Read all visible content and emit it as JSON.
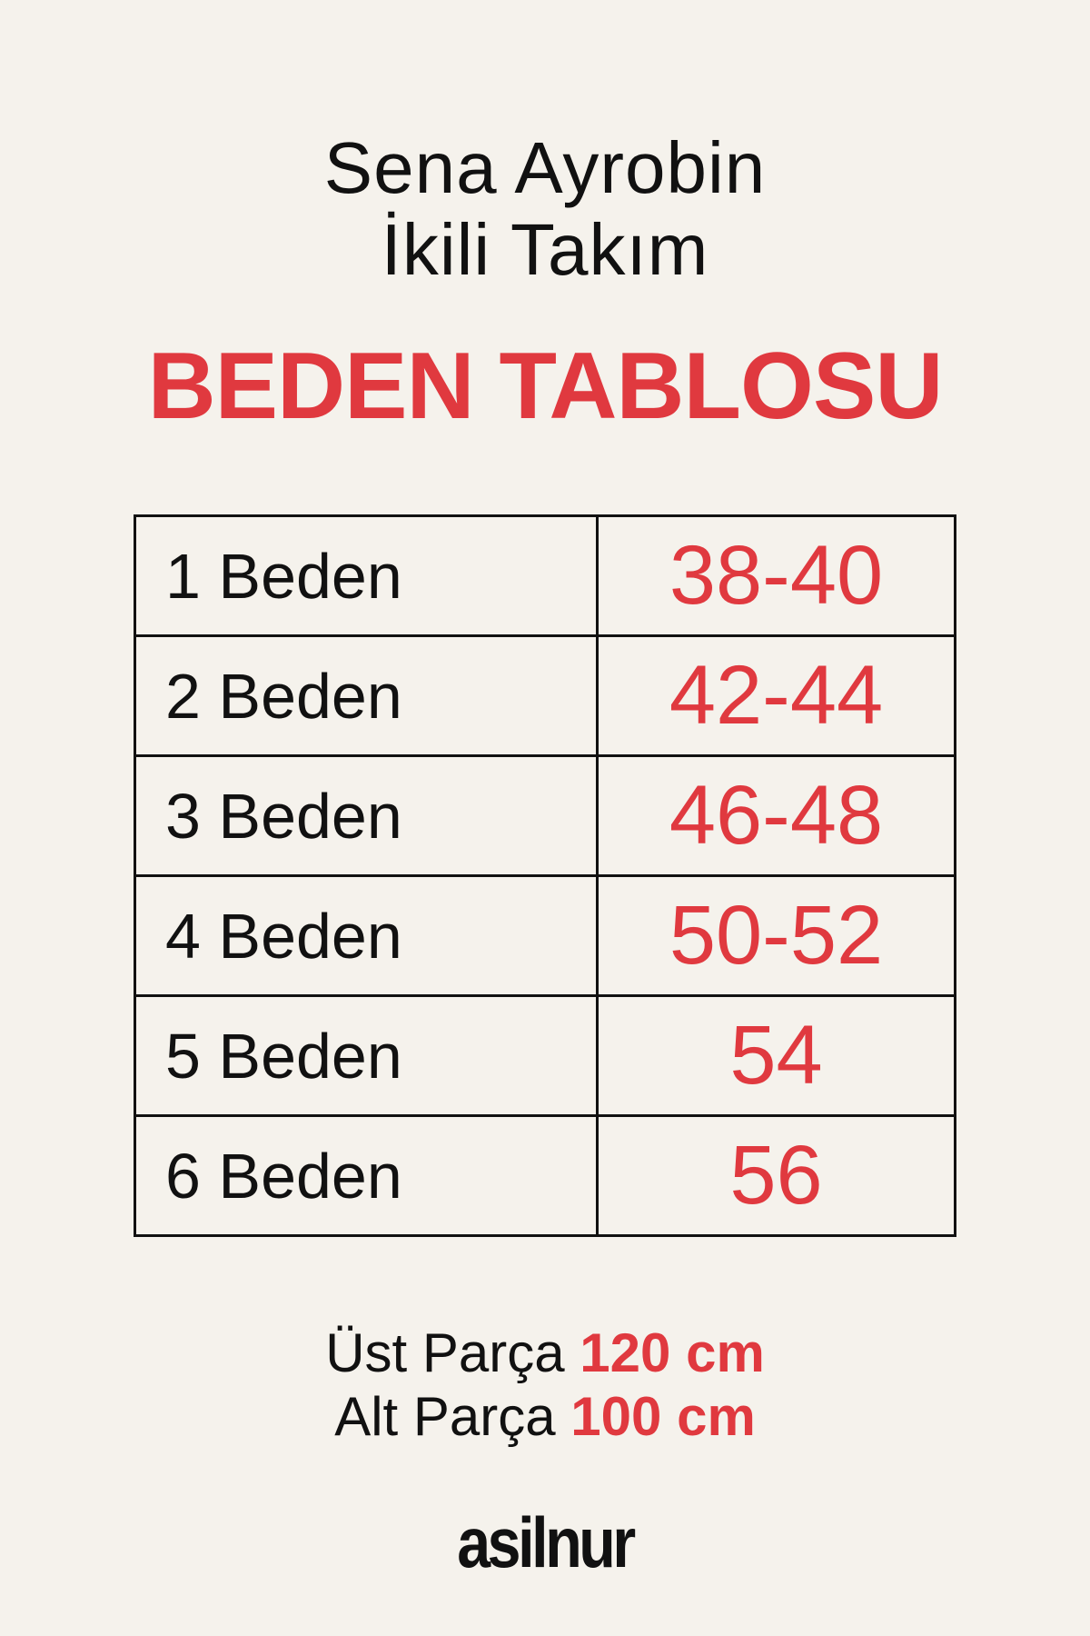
{
  "header": {
    "line1": "Sena Ayrobin",
    "line2": "İkili Takım",
    "title": "BEDEN TABLOSU"
  },
  "size_table": {
    "rows": [
      {
        "size": "1 Beden",
        "range": "38-40"
      },
      {
        "size": "2 Beden",
        "range": "42-44"
      },
      {
        "size": "3 Beden",
        "range": "46-48"
      },
      {
        "size": "4 Beden",
        "range": "50-52"
      },
      {
        "size": "5 Beden",
        "range": "54"
      },
      {
        "size": "6 Beden",
        "range": "56"
      }
    ]
  },
  "footer": {
    "top_label": "Üst Parça",
    "top_value": "120 cm",
    "bottom_label": "Alt Parça",
    "bottom_value": "100 cm"
  },
  "brand": "asilnur",
  "colors": {
    "accent": "#e0393f",
    "background": "#f5f2ec"
  }
}
